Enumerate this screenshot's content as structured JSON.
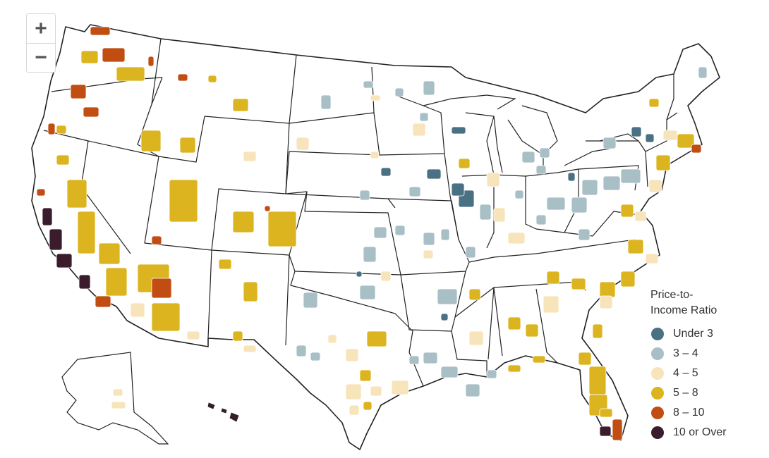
{
  "map": {
    "controls": {
      "zoom_in": "+",
      "zoom_out": "−"
    },
    "legend": {
      "title": "Price-to-Income Ratio",
      "items": [
        {
          "label": "Under 3",
          "color": "#4a7183"
        },
        {
          "label": "3 – 4",
          "color": "#a8bfc6"
        },
        {
          "label": "4 – 5",
          "color": "#f8e4bb"
        },
        {
          "label": "5 – 8",
          "color": "#dcb41f"
        },
        {
          "label": "8 – 10",
          "color": "#c24d12"
        },
        {
          "label": "10 or Over",
          "color": "#3a1c2c"
        }
      ]
    }
  }
}
